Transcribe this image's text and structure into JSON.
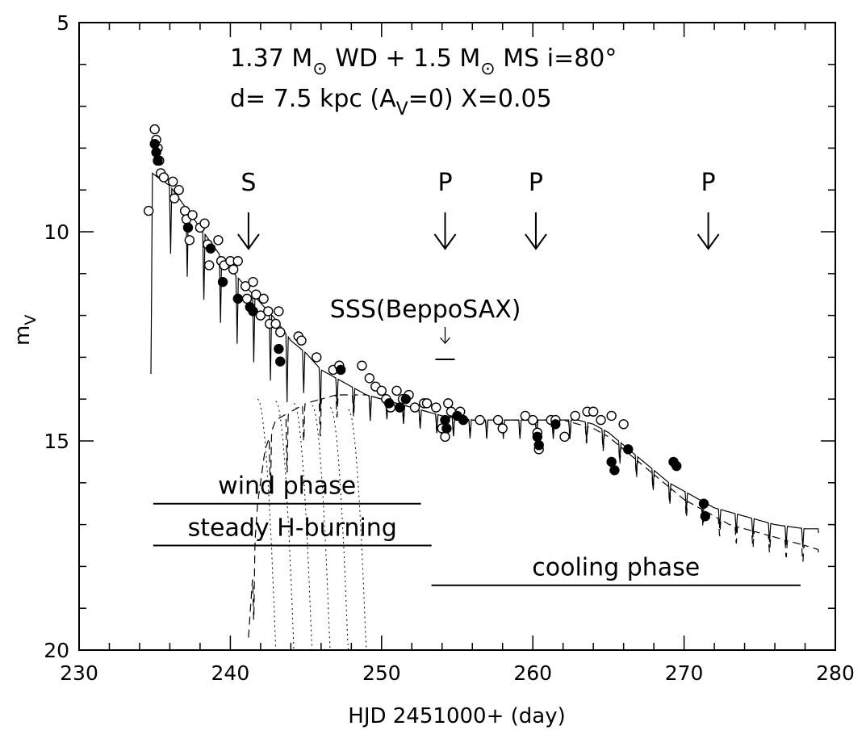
{
  "chart_data": {
    "type": "scatter",
    "title_line1": {
      "a": "1.37 M",
      "b": " WD + 1.5 M",
      "c": " MS  i=80°"
    },
    "title_line2": {
      "a": "d= 7.5 kpc (A",
      "sub": "V",
      "b": "=0)  X=0.05"
    },
    "xlabel": "HJD 2451000+ (day)",
    "ylabel": "m",
    "ylabel_sub": "V",
    "xlim": [
      230,
      280
    ],
    "ylim": [
      5,
      20
    ],
    "y_inverted": true,
    "x_ticks": [
      "230",
      "240",
      "250",
      "260",
      "270",
      "280"
    ],
    "x_tick_values": [
      230,
      240,
      250,
      260,
      270,
      280
    ],
    "y_ticks": [
      "5",
      "10",
      "15",
      "20"
    ],
    "y_tick_values": [
      5,
      10,
      15,
      20
    ],
    "arrows": [
      {
        "label": "S",
        "x": 241.2
      },
      {
        "label": "P",
        "x": 254.2
      },
      {
        "label": "P",
        "x": 260.2
      },
      {
        "label": "P",
        "x": 271.6
      }
    ],
    "sss_label": "SSS(BeppoSAX)",
    "sss_x": 254.2,
    "sss_y": 13.05,
    "phases": [
      {
        "label": "wind phase",
        "x_start": 234.9,
        "x_end": 252.6,
        "y": 16.5
      },
      {
        "label": "steady H-burning",
        "x_start": 234.9,
        "x_end": 253.3,
        "y": 17.5
      },
      {
        "label": "cooling phase",
        "x_start": 253.3,
        "x_end": 277.7,
        "y": 18.45
      }
    ],
    "series": [
      {
        "name": "observed (open circles)",
        "marker": "open-circle",
        "points": [
          [
            234.6,
            9.5
          ],
          [
            235.0,
            7.55
          ],
          [
            235.1,
            7.8
          ],
          [
            235.2,
            8.0
          ],
          [
            235.3,
            8.3
          ],
          [
            235.4,
            8.6
          ],
          [
            235.6,
            8.7
          ],
          [
            236.2,
            8.8
          ],
          [
            236.3,
            9.2
          ],
          [
            236.6,
            9.0
          ],
          [
            237.0,
            9.5
          ],
          [
            237.1,
            9.7
          ],
          [
            237.3,
            10.2
          ],
          [
            237.5,
            9.6
          ],
          [
            238.0,
            9.9
          ],
          [
            238.3,
            9.8
          ],
          [
            238.5,
            10.3
          ],
          [
            238.6,
            10.8
          ],
          [
            239.2,
            10.2
          ],
          [
            239.4,
            10.7
          ],
          [
            239.6,
            10.8
          ],
          [
            240.0,
            10.7
          ],
          [
            240.2,
            10.9
          ],
          [
            240.5,
            10.7
          ],
          [
            241.0,
            11.3
          ],
          [
            241.1,
            11.6
          ],
          [
            241.5,
            11.2
          ],
          [
            241.7,
            11.5
          ],
          [
            242.0,
            12.0
          ],
          [
            242.2,
            11.6
          ],
          [
            242.5,
            11.9
          ],
          [
            242.6,
            12.2
          ],
          [
            243.0,
            12.2
          ],
          [
            243.2,
            11.9
          ],
          [
            243.3,
            12.4
          ],
          [
            244.5,
            12.5
          ],
          [
            244.7,
            12.6
          ],
          [
            245.7,
            13.0
          ],
          [
            246.8,
            13.3
          ],
          [
            247.2,
            13.2
          ],
          [
            248.7,
            13.2
          ],
          [
            249.2,
            13.5
          ],
          [
            249.6,
            13.7
          ],
          [
            250.0,
            13.8
          ],
          [
            250.3,
            14.0
          ],
          [
            250.6,
            14.2
          ],
          [
            251.0,
            13.8
          ],
          [
            251.4,
            14.0
          ],
          [
            251.8,
            13.9
          ],
          [
            252.2,
            14.2
          ],
          [
            252.8,
            14.1
          ],
          [
            253.0,
            14.1
          ],
          [
            253.6,
            14.2
          ],
          [
            254.0,
            14.7
          ],
          [
            254.2,
            14.9
          ],
          [
            254.4,
            14.1
          ],
          [
            254.6,
            14.3
          ],
          [
            255.2,
            14.3
          ],
          [
            256.5,
            14.5
          ],
          [
            257.7,
            14.5
          ],
          [
            258.0,
            14.7
          ],
          [
            259.5,
            14.4
          ],
          [
            260.0,
            14.5
          ],
          [
            260.3,
            14.8
          ],
          [
            260.4,
            15.2
          ],
          [
            261.2,
            14.5
          ],
          [
            261.5,
            14.5
          ],
          [
            262.1,
            14.9
          ],
          [
            262.8,
            14.4
          ],
          [
            263.6,
            14.3
          ],
          [
            264.0,
            14.3
          ],
          [
            264.5,
            14.5
          ],
          [
            265.2,
            14.4
          ],
          [
            266.0,
            14.6
          ]
        ]
      },
      {
        "name": "observed (filled circles)",
        "marker": "filled-circle",
        "points": [
          [
            235.0,
            7.9
          ],
          [
            235.1,
            8.1
          ],
          [
            235.2,
            8.3
          ],
          [
            237.2,
            9.9
          ],
          [
            238.7,
            10.4
          ],
          [
            239.5,
            11.2
          ],
          [
            240.5,
            11.6
          ],
          [
            241.3,
            11.8
          ],
          [
            241.5,
            11.9
          ],
          [
            243.2,
            12.8
          ],
          [
            243.3,
            13.1
          ],
          [
            247.3,
            13.3
          ],
          [
            250.5,
            14.1
          ],
          [
            251.2,
            14.2
          ],
          [
            251.6,
            14.0
          ],
          [
            254.2,
            14.5
          ],
          [
            254.3,
            14.7
          ],
          [
            255.0,
            14.4
          ],
          [
            255.4,
            14.5
          ],
          [
            260.3,
            14.9
          ],
          [
            260.4,
            15.1
          ],
          [
            261.5,
            14.6
          ],
          [
            265.2,
            15.5
          ],
          [
            265.4,
            15.7
          ],
          [
            266.3,
            15.2
          ],
          [
            269.3,
            15.5
          ],
          [
            269.5,
            15.6
          ],
          [
            271.3,
            16.5
          ],
          [
            271.4,
            16.8
          ]
        ]
      },
      {
        "name": "model (solid)",
        "style": "solid",
        "points": [
          [
            234.75,
            13.4
          ],
          [
            234.85,
            8.6
          ],
          [
            235.2,
            8.7
          ],
          [
            236.0,
            8.9
          ],
          [
            237.0,
            9.4
          ],
          [
            238.0,
            9.9
          ],
          [
            239.0,
            10.4
          ],
          [
            240.0,
            10.9
          ],
          [
            241.0,
            11.3
          ],
          [
            242.0,
            11.7
          ],
          [
            243.0,
            12.1
          ],
          [
            244.0,
            12.6
          ],
          [
            245.0,
            12.9
          ],
          [
            246.0,
            13.3
          ],
          [
            247.0,
            13.5
          ],
          [
            248.0,
            13.7
          ],
          [
            249.0,
            13.9
          ],
          [
            250.0,
            14.0
          ],
          [
            251.0,
            14.1
          ],
          [
            252.0,
            14.2
          ],
          [
            253.0,
            14.3
          ],
          [
            254.0,
            14.4
          ],
          [
            255.0,
            14.45
          ],
          [
            256.0,
            14.5
          ],
          [
            257.0,
            14.5
          ],
          [
            258.0,
            14.5
          ],
          [
            259.0,
            14.5
          ],
          [
            260.0,
            14.5
          ],
          [
            261.0,
            14.5
          ],
          [
            262.0,
            14.5
          ],
          [
            263.0,
            14.5
          ],
          [
            264.0,
            14.6
          ],
          [
            265.0,
            14.8
          ],
          [
            266.0,
            15.1
          ],
          [
            267.0,
            15.4
          ],
          [
            268.0,
            15.7
          ],
          [
            269.0,
            16.0
          ],
          [
            270.0,
            16.2
          ],
          [
            271.0,
            16.4
          ],
          [
            272.0,
            16.6
          ],
          [
            273.0,
            16.7
          ],
          [
            274.0,
            16.8
          ],
          [
            275.0,
            16.9
          ],
          [
            276.0,
            17.0
          ],
          [
            277.0,
            17.05
          ],
          [
            278.0,
            17.1
          ],
          [
            278.9,
            17.1
          ]
        ]
      },
      {
        "name": "model (dashed)",
        "style": "dashed",
        "points": [
          [
            241.2,
            19.7
          ],
          [
            241.8,
            16.5
          ],
          [
            242.3,
            15.2
          ],
          [
            243.0,
            14.5
          ],
          [
            244.0,
            14.3
          ],
          [
            245.0,
            14.1
          ],
          [
            246.0,
            14.0
          ],
          [
            247.0,
            13.9
          ],
          [
            248.0,
            13.9
          ],
          [
            249.0,
            13.9
          ],
          [
            250.0,
            14.0
          ],
          [
            251.0,
            14.1
          ],
          [
            252.0,
            14.2
          ],
          [
            253.0,
            14.3
          ],
          [
            254.0,
            14.4
          ],
          [
            255.0,
            14.5
          ],
          [
            256.0,
            14.5
          ],
          [
            258.0,
            14.5
          ],
          [
            260.0,
            14.5
          ],
          [
            262.0,
            14.5
          ],
          [
            264.0,
            14.7
          ],
          [
            265.0,
            14.9
          ],
          [
            266.0,
            15.2
          ],
          [
            267.0,
            15.5
          ],
          [
            268.0,
            15.8
          ],
          [
            269.0,
            16.1
          ],
          [
            270.0,
            16.4
          ],
          [
            271.0,
            16.6
          ],
          [
            272.0,
            16.8
          ],
          [
            273.0,
            17.0
          ],
          [
            274.0,
            17.1
          ],
          [
            275.0,
            17.2
          ],
          [
            276.0,
            17.3
          ],
          [
            277.0,
            17.4
          ],
          [
            278.0,
            17.5
          ],
          [
            278.9,
            17.6
          ]
        ]
      }
    ]
  }
}
